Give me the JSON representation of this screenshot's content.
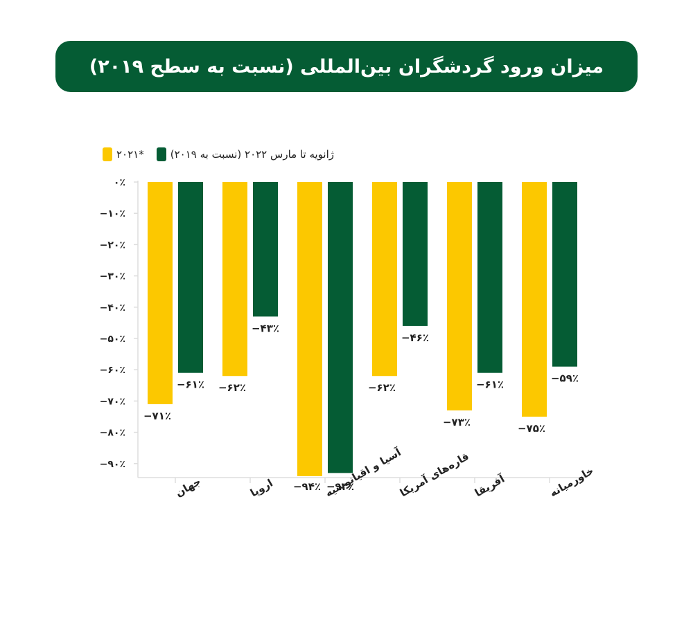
{
  "header": {
    "title": "میزان ورود گردشگران بین‌المللی (نسبت به سطح ۲۰۱۹)"
  },
  "legend": [
    {
      "label": "۲۰۲۱*",
      "color": "#fcc800"
    },
    {
      "label": "ژانویه تا مارس ۲۰۲۲ (نسبت به ۲۰۱۹)",
      "color": "#055c34"
    }
  ],
  "colors": {
    "title_bg": "#055c34",
    "series_2021": "#fcc800",
    "series_2022": "#055c34",
    "axis": "#dddddd"
  },
  "chart_data": {
    "type": "bar",
    "title": "میزان ورود گردشگران بین‌المللی (نسبت به سطح ۲۰۱۹)",
    "xlabel": "",
    "ylabel": "",
    "ylim": [
      -95,
      0
    ],
    "grid": false,
    "legend_position": "top-left",
    "categories": [
      "جهان",
      "اروپا",
      "آسیا و اقیانوسیه",
      "قاره‌های آمریکا",
      "آفریقا",
      "خاورمیانه"
    ],
    "series": [
      {
        "name": "۲۰۲۱*",
        "color": "#fcc800",
        "values": [
          -71,
          -62,
          -94,
          -62,
          -73,
          -75
        ],
        "labels": [
          "−۷۱٪",
          "−۶۲٪",
          "−۹۴٪",
          "−۶۲٪",
          "−۷۳٪",
          "−۷۵٪"
        ]
      },
      {
        "name": "ژانویه تا مارس ۲۰۲۲ (نسبت به ۲۰۱۹)",
        "color": "#055c34",
        "values": [
          -61,
          -43,
          -93,
          -46,
          -61,
          -59
        ],
        "labels": [
          "−۶۱٪",
          "−۴۳٪",
          "−۹۳٪",
          "−۴۶٪",
          "−۶۱٪",
          "−۵۹٪"
        ]
      }
    ],
    "y_ticks": [
      {
        "value": 0,
        "label": "۰٪"
      },
      {
        "value": -10,
        "label": "−۱۰٪"
      },
      {
        "value": -20,
        "label": "−۲۰٪"
      },
      {
        "value": -30,
        "label": "−۳۰٪"
      },
      {
        "value": -40,
        "label": "−۴۰٪"
      },
      {
        "value": -50,
        "label": "−۵۰٪"
      },
      {
        "value": -60,
        "label": "−۶۰٪"
      },
      {
        "value": -70,
        "label": "−۷۰٪"
      },
      {
        "value": -80,
        "label": "−۸۰٪"
      },
      {
        "value": -90,
        "label": "−۹۰٪"
      }
    ]
  }
}
